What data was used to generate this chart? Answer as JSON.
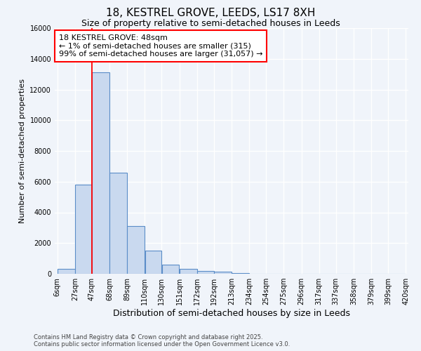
{
  "title": "18, KESTREL GROVE, LEEDS, LS17 8XH",
  "subtitle": "Size of property relative to semi-detached houses in Leeds",
  "xlabel": "Distribution of semi-detached houses by size in Leeds",
  "ylabel": "Number of semi-detached properties",
  "footer1": "Contains HM Land Registry data © Crown copyright and database right 2025.",
  "footer2": "Contains public sector information licensed under the Open Government Licence v3.0.",
  "annotation_title": "18 KESTREL GROVE: 48sqm",
  "annotation_line1": "← 1% of semi-detached houses are smaller (315)",
  "annotation_line2": "99% of semi-detached houses are larger (31,057) →",
  "bar_left_edges": [
    6,
    27,
    47,
    68,
    89,
    110,
    130,
    151,
    172,
    192,
    213,
    234,
    254,
    275,
    296,
    317,
    337,
    358,
    379,
    399
  ],
  "bar_widths": [
    21,
    20,
    21,
    21,
    21,
    20,
    21,
    21,
    20,
    21,
    21,
    20,
    21,
    21,
    21,
    20,
    20,
    21,
    20,
    21
  ],
  "bar_heights": [
    300,
    5800,
    13100,
    6600,
    3100,
    1500,
    600,
    300,
    200,
    120,
    50,
    10,
    5,
    2,
    1,
    0,
    0,
    0,
    0,
    0
  ],
  "bar_color": "#c9d9ef",
  "bar_edge_color": "#5b8dc8",
  "red_line_x": 47,
  "ylim": [
    0,
    16000
  ],
  "yticks": [
    0,
    2000,
    4000,
    6000,
    8000,
    10000,
    12000,
    14000,
    16000
  ],
  "tick_labels": [
    "6sqm",
    "27sqm",
    "47sqm",
    "68sqm",
    "89sqm",
    "110sqm",
    "130sqm",
    "151sqm",
    "172sqm",
    "192sqm",
    "213sqm",
    "234sqm",
    "254sqm",
    "275sqm",
    "296sqm",
    "317sqm",
    "337sqm",
    "358sqm",
    "379sqm",
    "399sqm",
    "420sqm"
  ],
  "background_color": "#f0f4fa",
  "plot_bg_color": "#f0f4fa",
  "grid_color": "#ffffff",
  "title_fontsize": 11,
  "subtitle_fontsize": 9,
  "annotation_fontsize": 8,
  "axis_label_fontsize": 8,
  "tick_fontsize": 7,
  "footer_fontsize": 6
}
